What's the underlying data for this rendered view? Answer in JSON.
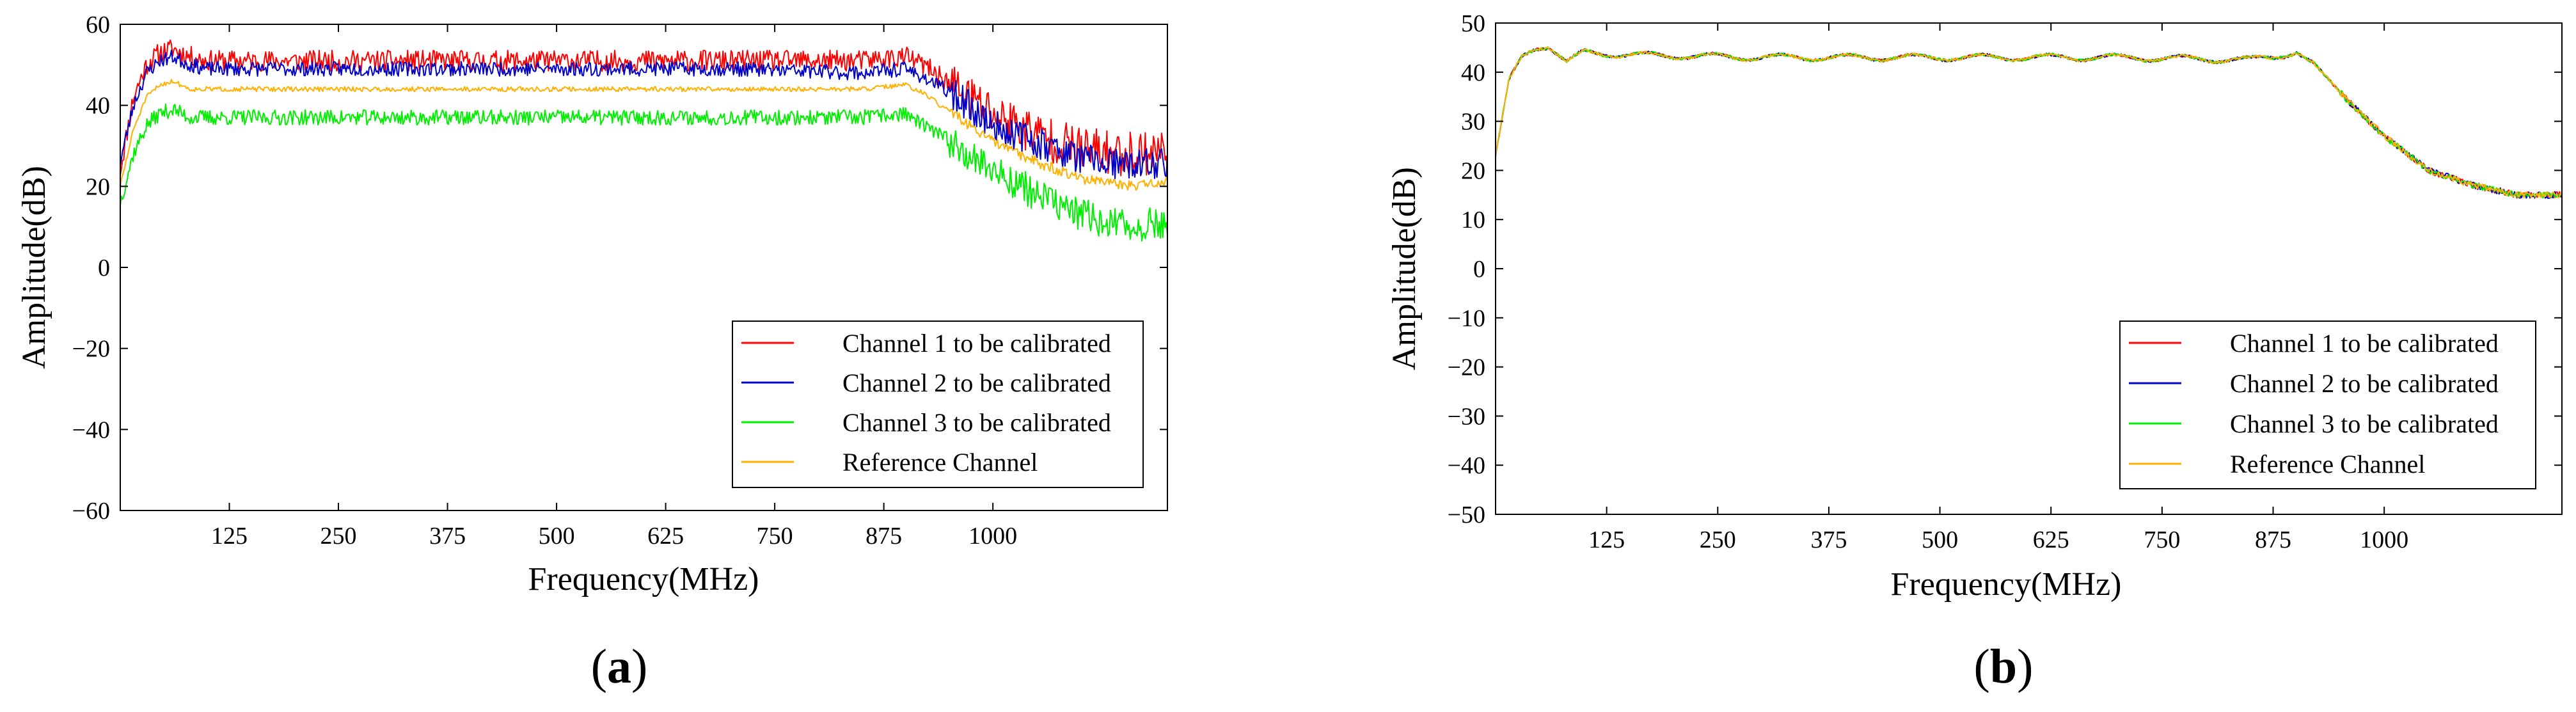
{
  "figure": {
    "panels": [
      {
        "letter": "a",
        "open": "(",
        "close": ")"
      },
      {
        "letter": "b",
        "open": "(",
        "close": ")"
      }
    ]
  },
  "chart_data": [
    {
      "type": "line",
      "panel": "a",
      "title": "",
      "xlabel": "Frequency(MHz)",
      "ylabel": "Amplitude(dB)",
      "xlim": [
        0,
        1200
      ],
      "ylim": [
        -60,
        60
      ],
      "xticks": [
        125,
        250,
        375,
        500,
        625,
        750,
        875,
        1000
      ],
      "yticks": [
        -60,
        -40,
        -20,
        0,
        20,
        40,
        60
      ],
      "ytick_labels": [
        "−60",
        "−40",
        "−20",
        "0",
        "20",
        "40",
        "60"
      ],
      "grid": false,
      "legend": "bottom-right",
      "series": [
        {
          "name": "Channel 1 to be calibrated",
          "color": "#ff0000",
          "noise": 2.6,
          "seed": 11,
          "x": [
            0,
            15,
            30,
            45,
            60,
            80,
            100,
            150,
            300,
            500,
            700,
            850,
            900,
            920,
            960,
            1000,
            1050,
            1100,
            1150,
            1200
          ],
          "y": [
            24,
            42,
            50,
            53,
            54,
            52,
            51,
            51,
            51,
            51,
            51,
            51,
            52,
            50,
            44,
            38,
            33,
            29,
            28,
            29
          ]
        },
        {
          "name": "Channel 2 to be calibrated",
          "color": "#0000c8",
          "noise": 1.8,
          "seed": 23,
          "x": [
            0,
            15,
            30,
            45,
            60,
            80,
            100,
            150,
            300,
            500,
            700,
            850,
            900,
            920,
            960,
            1000,
            1050,
            1100,
            1150,
            1200
          ],
          "y": [
            26,
            40,
            48,
            51,
            52,
            50,
            49,
            49,
            49,
            49,
            49,
            48,
            49,
            47,
            42,
            35,
            31,
            27,
            25,
            26
          ]
        },
        {
          "name": "Channel 3 to be calibrated",
          "color": "#00ee00",
          "noise": 1.9,
          "seed": 37,
          "x": [
            0,
            15,
            30,
            45,
            60,
            80,
            100,
            150,
            300,
            500,
            700,
            850,
            900,
            920,
            960,
            1000,
            1050,
            1100,
            1150,
            1200
          ],
          "y": [
            16,
            28,
            35,
            38,
            39,
            37,
            37,
            37,
            37,
            37,
            37,
            37,
            38,
            35,
            30,
            24,
            18,
            13,
            10,
            11
          ]
        },
        {
          "name": "Reference Channel",
          "color": "#ffb000",
          "noise": 0.6,
          "seed": 51,
          "x": [
            0,
            15,
            30,
            45,
            60,
            80,
            100,
            150,
            300,
            500,
            700,
            850,
            900,
            920,
            960,
            1000,
            1050,
            1100,
            1150,
            1200
          ],
          "y": [
            20,
            34,
            42,
            45,
            46,
            44,
            44,
            44,
            44,
            44,
            44,
            44,
            45,
            43,
            37,
            31,
            26,
            22,
            20,
            21
          ]
        }
      ]
    },
    {
      "type": "line",
      "panel": "b",
      "title": "",
      "xlabel": "Frequency(MHz)",
      "ylabel": "Amplitude(dB)",
      "xlim": [
        0,
        1200
      ],
      "ylim": [
        -50,
        50
      ],
      "xticks": [
        125,
        250,
        375,
        500,
        625,
        750,
        875,
        1000
      ],
      "yticks": [
        -50,
        -40,
        -30,
        -20,
        -10,
        0,
        10,
        20,
        30,
        40,
        50
      ],
      "ytick_labels": [
        "−50",
        "−40",
        "−30",
        "−20",
        "−10",
        "0",
        "10",
        "20",
        "30",
        "40",
        "50"
      ],
      "grid": false,
      "legend": "bottom-right",
      "series": [
        {
          "name": "Channel 1 to be calibrated",
          "color": "#ff0000",
          "noise": 0.3,
          "seed": 61,
          "x": [
            0,
            15,
            30,
            45,
            60,
            80,
            100,
            150,
            300,
            500,
            700,
            850,
            900,
            920,
            960,
            1000,
            1050,
            1100,
            1150,
            1200
          ],
          "y": [
            23,
            38,
            43,
            45,
            45.5,
            42,
            44,
            43.5,
            43,
            43,
            43,
            42.5,
            44,
            42,
            34,
            27,
            20,
            17,
            15,
            15
          ]
        },
        {
          "name": "Channel 2 to be calibrated",
          "color": "#0000c8",
          "noise": 0.3,
          "seed": 67,
          "x": [
            0,
            15,
            30,
            45,
            60,
            80,
            100,
            150,
            300,
            500,
            700,
            850,
            900,
            920,
            960,
            1000,
            1050,
            1100,
            1150,
            1200
          ],
          "y": [
            23,
            38,
            43,
            45,
            45.5,
            42,
            44,
            43.5,
            43,
            43,
            43,
            42.5,
            44,
            42,
            34,
            27,
            20,
            17,
            15,
            15
          ]
        },
        {
          "name": "Channel 3 to be calibrated",
          "color": "#00ee00",
          "noise": 0.3,
          "seed": 71,
          "x": [
            0,
            15,
            30,
            45,
            60,
            80,
            100,
            150,
            300,
            500,
            700,
            850,
            900,
            920,
            960,
            1000,
            1050,
            1100,
            1150,
            1200
          ],
          "y": [
            23,
            38,
            43,
            45,
            45.5,
            42,
            44,
            43.5,
            43,
            43,
            43,
            42.5,
            44,
            42,
            34,
            27,
            20,
            17,
            15,
            15
          ]
        },
        {
          "name": "Reference Channel",
          "color": "#ffb000",
          "noise": 0.3,
          "seed": 79,
          "x": [
            0,
            15,
            30,
            45,
            60,
            80,
            100,
            150,
            300,
            500,
            700,
            850,
            900,
            920,
            960,
            1000,
            1050,
            1100,
            1150,
            1200
          ],
          "y": [
            23,
            38,
            43,
            45,
            45.5,
            42,
            44,
            43.5,
            43,
            43,
            43,
            42.5,
            44,
            42,
            34,
            27,
            20,
            17,
            15,
            15
          ]
        }
      ]
    }
  ]
}
